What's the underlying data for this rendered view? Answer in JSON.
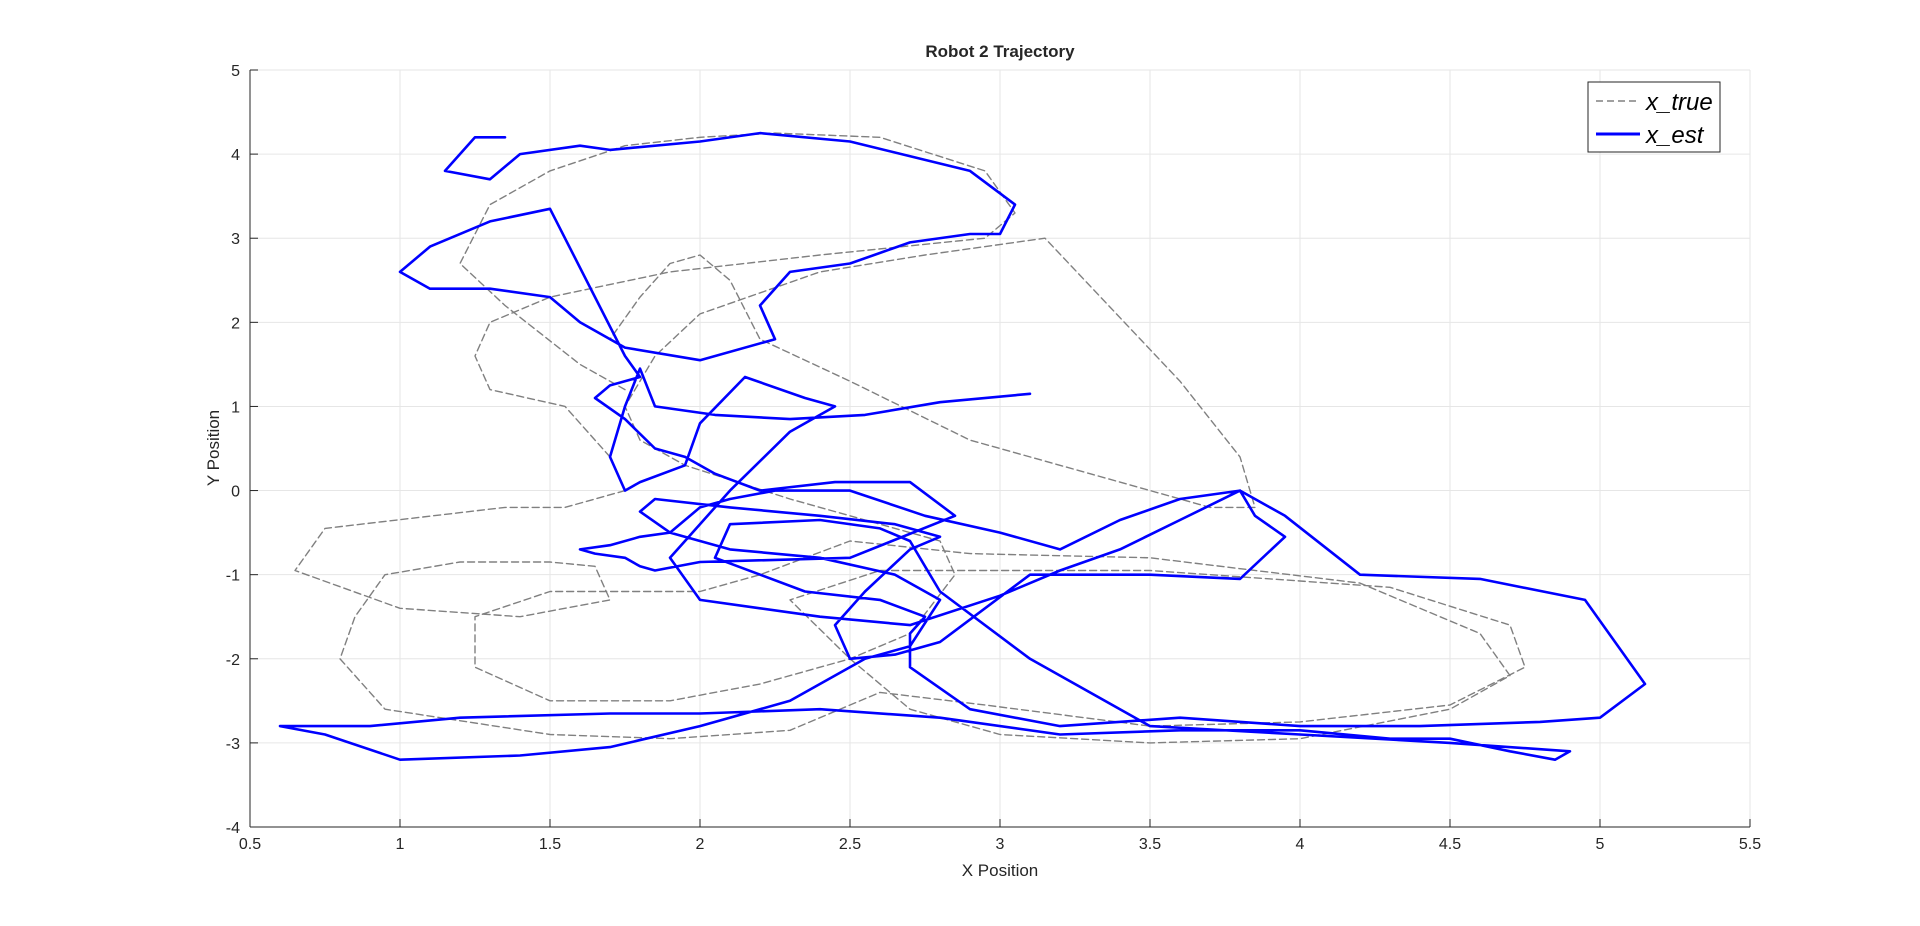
{
  "chart_data": {
    "type": "line",
    "title": "Robot 2 Trajectory",
    "xlabel": "X Position",
    "ylabel": "Y Position",
    "xlim": [
      0.5,
      5.5
    ],
    "ylim": [
      -4,
      5
    ],
    "xticks": [
      0.5,
      1,
      1.5,
      2,
      2.5,
      3,
      3.5,
      4,
      4.5,
      5,
      5.5
    ],
    "xtick_labels": [
      "0.5",
      "1",
      "1.5",
      "2",
      "2.5",
      "3",
      "3.5",
      "4",
      "4.5",
      "5",
      "5.5"
    ],
    "yticks": [
      -4,
      -3,
      -2,
      -1,
      0,
      1,
      2,
      3,
      4,
      5
    ],
    "ytick_labels": [
      "-4",
      "-3",
      "-2",
      "-1",
      "0",
      "1",
      "2",
      "3",
      "4",
      "5"
    ],
    "grid": true,
    "legend_position": "top-right",
    "series": [
      {
        "name": "x_true",
        "color": "#808080",
        "style": "dashed",
        "x": [
          1.75,
          1.6,
          1.35,
          1.2,
          1.3,
          1.5,
          1.75,
          2.0,
          2.25,
          2.6,
          2.95,
          3.05,
          2.95,
          2.4,
          1.9,
          1.5,
          1.3,
          1.25,
          1.3,
          1.55,
          1.7,
          1.75,
          1.55,
          1.35,
          0.75,
          0.65,
          1.0,
          1.4,
          1.7,
          1.65,
          1.5,
          1.2,
          0.95,
          0.85,
          0.8,
          0.95,
          1.5,
          1.9,
          2.3,
          2.6,
          2.95,
          3.5,
          4.0,
          4.5,
          4.75,
          4.7,
          4.3,
          3.5,
          2.6,
          2.3,
          2.5,
          2.7,
          3.0,
          3.5,
          4.0,
          4.5,
          4.7,
          4.6,
          4.2,
          3.5,
          2.9,
          2.5,
          2.2,
          2.0,
          1.5,
          1.25,
          1.25,
          1.5,
          1.9,
          2.2,
          2.5,
          2.7,
          2.85,
          2.8,
          2.6,
          2.3,
          1.95,
          1.8,
          1.75,
          1.85,
          2.0,
          2.4,
          2.75,
          3.15,
          3.6,
          3.8,
          3.85,
          3.7,
          3.3,
          2.9,
          2.5,
          2.2,
          2.1,
          2.0,
          1.9,
          1.8,
          1.7
        ],
        "y": [
          1.2,
          1.5,
          2.2,
          2.7,
          3.4,
          3.8,
          4.1,
          4.2,
          4.25,
          4.2,
          3.8,
          3.3,
          3.0,
          2.8,
          2.6,
          2.3,
          2.0,
          1.6,
          1.2,
          1.0,
          0.4,
          0.0,
          -0.2,
          -0.2,
          -0.45,
          -0.95,
          -1.4,
          -1.5,
          -1.3,
          -0.9,
          -0.85,
          -0.85,
          -1.0,
          -1.5,
          -2.0,
          -2.6,
          -2.9,
          -2.95,
          -2.85,
          -2.4,
          -2.55,
          -2.8,
          -2.75,
          -2.55,
          -2.1,
          -1.6,
          -1.15,
          -0.95,
          -0.95,
          -1.3,
          -2.0,
          -2.6,
          -2.9,
          -3.0,
          -2.95,
          -2.6,
          -2.2,
          -1.7,
          -1.1,
          -0.8,
          -0.75,
          -0.6,
          -1.0,
          -1.2,
          -1.2,
          -1.5,
          -2.1,
          -2.5,
          -2.5,
          -2.3,
          -2.0,
          -1.7,
          -1.0,
          -0.6,
          -0.4,
          -0.1,
          0.3,
          0.6,
          1.0,
          1.6,
          2.1,
          2.6,
          2.8,
          3.0,
          1.3,
          0.4,
          -0.2,
          -0.2,
          0.2,
          0.6,
          1.3,
          1.8,
          2.5,
          2.8,
          2.7,
          2.3,
          1.8
        ]
      },
      {
        "name": "x_est",
        "color": "#0000ff",
        "style": "solid",
        "x": [
          1.35,
          1.25,
          1.15,
          1.3,
          1.4,
          1.6,
          1.7,
          2.0,
          2.2,
          2.5,
          2.9,
          3.05,
          3.0,
          2.9,
          2.7,
          2.5,
          2.3,
          2.2,
          2.25,
          2.0,
          1.75,
          1.6,
          1.5,
          1.3,
          1.1,
          1.0,
          1.1,
          1.3,
          1.5,
          1.75,
          1.8,
          1.7,
          1.65,
          1.75,
          1.85,
          1.95,
          2.05,
          2.2,
          2.45,
          2.7,
          2.85,
          2.5,
          2.0,
          1.85,
          1.8,
          1.75,
          1.65,
          1.6,
          1.7,
          1.8,
          1.9,
          2.0,
          2.1,
          2.25,
          2.5,
          2.75,
          3.0,
          3.2,
          3.4,
          3.6,
          3.8,
          3.95,
          4.2,
          4.6,
          4.95,
          5.15,
          5.0,
          4.8,
          4.4,
          4.0,
          3.6,
          3.2,
          2.9,
          2.7,
          2.7,
          2.75,
          2.6,
          2.35,
          2.05,
          2.1,
          2.4,
          2.6,
          2.7,
          2.75,
          2.8,
          3.1,
          3.5,
          4.0,
          4.5,
          4.9,
          4.85,
          4.7,
          4.5,
          4.3,
          4.0,
          3.6,
          3.2,
          2.8,
          2.4,
          2.0,
          1.7,
          1.2,
          0.9,
          0.6,
          0.75,
          1.0,
          1.4,
          1.7,
          2.0,
          2.3,
          2.55,
          2.7,
          2.8,
          2.65,
          2.4,
          2.1,
          1.9,
          1.8,
          1.85,
          2.1,
          2.4,
          2.65,
          2.8,
          2.7,
          2.55,
          2.45,
          2.5,
          2.65,
          2.8,
          3.1,
          3.5,
          3.8,
          3.95,
          3.85,
          3.8,
          3.6,
          3.4,
          3.2,
          3.0,
          2.7,
          2.4,
          2.2,
          2.0,
          1.9,
          1.95,
          2.1,
          2.3,
          2.45,
          2.35,
          2.15,
          2.0,
          1.95,
          1.8,
          1.75,
          1.7,
          1.75,
          1.8,
          1.85,
          2.05,
          2.3,
          2.55,
          2.8,
          3.1
        ],
        "y": [
          4.2,
          4.2,
          3.8,
          3.7,
          4.0,
          4.1,
          4.05,
          4.15,
          4.25,
          4.15,
          3.8,
          3.4,
          3.05,
          3.05,
          2.95,
          2.7,
          2.6,
          2.2,
          1.8,
          1.55,
          1.7,
          2.0,
          2.3,
          2.4,
          2.4,
          2.6,
          2.9,
          3.2,
          3.35,
          1.6,
          1.35,
          1.25,
          1.1,
          0.85,
          0.5,
          0.4,
          0.2,
          0.0,
          0.1,
          0.1,
          -0.3,
          -0.8,
          -0.85,
          -0.95,
          -0.9,
          -0.8,
          -0.75,
          -0.7,
          -0.65,
          -0.55,
          -0.5,
          -0.2,
          -0.1,
          0.0,
          0.0,
          -0.3,
          -0.5,
          -0.7,
          -0.35,
          -0.1,
          0.0,
          -0.3,
          -1.0,
          -1.05,
          -1.3,
          -2.3,
          -2.7,
          -2.75,
          -2.8,
          -2.8,
          -2.7,
          -2.8,
          -2.6,
          -2.1,
          -1.7,
          -1.5,
          -1.3,
          -1.2,
          -0.8,
          -0.4,
          -0.35,
          -0.45,
          -0.6,
          -0.9,
          -1.2,
          -2.0,
          -2.8,
          -2.9,
          -3.0,
          -3.1,
          -3.2,
          -3.1,
          -2.95,
          -2.95,
          -2.85,
          -2.85,
          -2.9,
          -2.7,
          -2.6,
          -2.65,
          -2.65,
          -2.7,
          -2.8,
          -2.8,
          -2.9,
          -3.2,
          -3.15,
          -3.05,
          -2.8,
          -2.5,
          -2.0,
          -1.85,
          -1.3,
          -1.0,
          -0.8,
          -0.7,
          -0.5,
          -0.25,
          -0.1,
          -0.2,
          -0.3,
          -0.4,
          -0.55,
          -0.7,
          -1.2,
          -1.6,
          -2.0,
          -1.95,
          -1.8,
          -1.0,
          -1.0,
          -1.05,
          -0.55,
          -0.3,
          0.0,
          -0.35,
          -0.7,
          -0.95,
          -1.25,
          -1.6,
          -1.5,
          -1.4,
          -1.3,
          -0.8,
          -0.6,
          0.0,
          0.7,
          1.0,
          1.1,
          1.35,
          0.8,
          0.3,
          0.1,
          0.0,
          0.4,
          1.0,
          1.45,
          1.0,
          0.9,
          0.85,
          0.9,
          1.05,
          1.15
        ]
      }
    ]
  }
}
